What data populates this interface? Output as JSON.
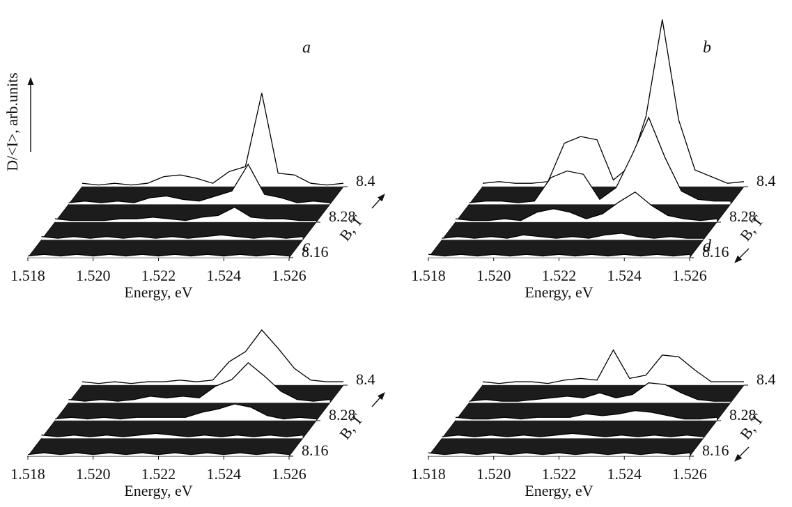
{
  "chart_data": [
    {
      "type": "waterfall",
      "label": "a",
      "ylabel": "D/<I>, arb.units",
      "xlabel": "Energy, eV",
      "blabel": "B, T",
      "b_arrow": "up",
      "x": [
        1.518,
        1.5185,
        1.519,
        1.5195,
        1.52,
        1.5205,
        1.521,
        1.5215,
        1.522,
        1.5225,
        1.523,
        1.5235,
        1.524,
        1.5245,
        1.525,
        1.5255,
        1.526
      ],
      "xlim": [
        1.518,
        1.526
      ],
      "xticks": [
        1.518,
        {
          "value": 1.52,
          "label": "1.520"
        },
        1.522,
        1.524,
        1.526
      ],
      "z": [
        8.16,
        8.22,
        8.28,
        8.34,
        8.4
      ],
      "blim": [
        8.16,
        8.4
      ],
      "bticks": [
        8.16,
        8.28,
        8.4
      ],
      "vlim": [
        0,
        10
      ],
      "values": [
        [
          0.1,
          0.2,
          0.1,
          0.2,
          0.1,
          0.2,
          0.1,
          0.2,
          0.1,
          0.2,
          0.1,
          0.2,
          0.1,
          0.2,
          0.1,
          0.2,
          0.1
        ],
        [
          0.2,
          0.1,
          0.2,
          0.1,
          0.2,
          0.1,
          0.2,
          0.1,
          0.2,
          0.1,
          0.2,
          0.3,
          0.2,
          0.1,
          0.2,
          0.1,
          0.2
        ],
        [
          0.2,
          0.1,
          0.1,
          0.1,
          0.2,
          0.2,
          0.3,
          0.2,
          0.1,
          0.3,
          0.4,
          0.9,
          0.3,
          0.2,
          0.2,
          0.1,
          0.1
        ],
        [
          0.1,
          0.2,
          0.1,
          0.2,
          0.1,
          0.4,
          0.5,
          0.3,
          0.2,
          0.5,
          0.8,
          2.4,
          0.6,
          0.4,
          0.1,
          0.2,
          0.1
        ],
        [
          0.2,
          0.1,
          0.2,
          0.1,
          0.2,
          0.6,
          0.7,
          0.5,
          0.2,
          0.9,
          1.2,
          5.6,
          0.8,
          0.7,
          0.2,
          0.1,
          0.2
        ]
      ]
    },
    {
      "type": "waterfall",
      "label": "b",
      "xlabel": "Energy, eV",
      "blabel": "B, T",
      "b_arrow": "down",
      "x": [
        1.518,
        1.5185,
        1.519,
        1.5195,
        1.52,
        1.5205,
        1.521,
        1.5215,
        1.522,
        1.5225,
        1.523,
        1.5235,
        1.524,
        1.5245,
        1.525,
        1.5255,
        1.526
      ],
      "xlim": [
        1.518,
        1.526
      ],
      "xticks": [
        1.518,
        {
          "value": 1.52,
          "label": "1.520"
        },
        1.522,
        1.524,
        1.526
      ],
      "z": [
        8.16,
        8.22,
        8.28,
        8.34,
        8.4
      ],
      "blim": [
        8.16,
        8.4
      ],
      "bticks": [
        8.16,
        8.28,
        8.4
      ],
      "vlim": [
        0,
        10
      ],
      "values": [
        [
          0.2,
          0.1,
          0.2,
          0.1,
          0.2,
          0.1,
          0.2,
          0.1,
          0.2,
          0.1,
          0.2,
          0.1,
          0.2,
          0.1,
          0.2,
          0.1,
          0.2
        ],
        [
          0.1,
          0.2,
          0.1,
          0.2,
          0.1,
          0.3,
          0.2,
          0.1,
          0.2,
          0.1,
          0.3,
          0.4,
          0.2,
          0.1,
          0.2,
          0.1,
          0.1
        ],
        [
          0.2,
          0.1,
          0.1,
          0.2,
          0.1,
          0.6,
          0.8,
          0.6,
          0.2,
          0.5,
          1.2,
          1.8,
          1.0,
          0.4,
          0.2,
          0.1,
          0.2
        ],
        [
          0.1,
          0.2,
          0.2,
          0.1,
          0.2,
          1.6,
          2.0,
          1.8,
          0.3,
          1.0,
          3.0,
          5.2,
          2.8,
          0.8,
          0.3,
          0.2,
          0.2
        ],
        [
          0.2,
          0.3,
          0.2,
          0.2,
          0.3,
          2.6,
          3.0,
          2.8,
          0.4,
          1.2,
          4.2,
          10,
          4.0,
          1.0,
          0.6,
          0.2,
          0.3
        ]
      ]
    },
    {
      "type": "waterfall",
      "label": "c",
      "xlabel": "Energy, eV",
      "blabel": "B, T",
      "b_arrow": "up",
      "x": [
        1.518,
        1.5185,
        1.519,
        1.5195,
        1.52,
        1.5205,
        1.521,
        1.5215,
        1.522,
        1.5225,
        1.523,
        1.5235,
        1.524,
        1.5245,
        1.525,
        1.5255,
        1.526
      ],
      "xlim": [
        1.518,
        1.526
      ],
      "xticks": [
        1.518,
        {
          "value": 1.52,
          "label": "1.520"
        },
        1.522,
        1.524,
        1.526
      ],
      "z": [
        8.16,
        8.22,
        8.28,
        8.34,
        8.4
      ],
      "blim": [
        8.16,
        8.4
      ],
      "bticks": [
        8.16,
        8.28,
        8.4
      ],
      "vlim": [
        0,
        10
      ],
      "values": [
        [
          0.1,
          0.2,
          0.1,
          0.2,
          0.1,
          0.2,
          0.1,
          0.2,
          0.1,
          0.2,
          0.1,
          0.2,
          0.1,
          0.2,
          0.1,
          0.2,
          0.1
        ],
        [
          0.2,
          0.1,
          0.2,
          0.1,
          0.2,
          0.1,
          0.2,
          0.3,
          0.2,
          0.1,
          0.2,
          0.1,
          0.2,
          0.1,
          0.2,
          0.1,
          0.2
        ],
        [
          0.1,
          0.2,
          0.1,
          0.2,
          0.1,
          0.2,
          0.2,
          0.2,
          0.2,
          0.5,
          0.7,
          1.0,
          0.8,
          0.3,
          0.1,
          0.2,
          0.1
        ],
        [
          0.2,
          0.1,
          0.2,
          0.1,
          0.2,
          0.4,
          0.3,
          0.4,
          0.3,
          1.0,
          1.4,
          2.4,
          1.6,
          0.7,
          0.2,
          0.1,
          0.2
        ],
        [
          0.2,
          0.1,
          0.2,
          0.1,
          0.2,
          0.2,
          0.3,
          0.2,
          0.3,
          1.4,
          2.0,
          3.3,
          2.2,
          1.0,
          0.3,
          0.2,
          0.2
        ]
      ]
    },
    {
      "type": "waterfall",
      "label": "d",
      "xlabel": "Energy, eV",
      "blabel": "B, T",
      "b_arrow": "down",
      "x": [
        1.518,
        1.5185,
        1.519,
        1.5195,
        1.52,
        1.5205,
        1.521,
        1.5215,
        1.522,
        1.5225,
        1.523,
        1.5235,
        1.524,
        1.5245,
        1.525,
        1.5255,
        1.526
      ],
      "xlim": [
        1.518,
        1.526
      ],
      "xticks": [
        1.518,
        {
          "value": 1.52,
          "label": "1.520"
        },
        1.522,
        1.524,
        1.526
      ],
      "z": [
        8.16,
        8.22,
        8.28,
        8.34,
        8.4
      ],
      "blim": [
        8.16,
        8.4
      ],
      "bticks": [
        8.16,
        8.28,
        8.4
      ],
      "vlim": [
        0,
        10
      ],
      "values": [
        [
          0.2,
          0.1,
          0.2,
          0.1,
          0.2,
          0.1,
          0.2,
          0.1,
          0.2,
          0.1,
          0.2,
          0.1,
          0.2,
          0.1,
          0.2,
          0.1,
          0.2
        ],
        [
          0.1,
          0.2,
          0.1,
          0.2,
          0.1,
          0.2,
          0.1,
          0.2,
          0.3,
          0.2,
          0.1,
          0.2,
          0.1,
          0.2,
          0.1,
          0.2,
          0.1
        ],
        [
          0.2,
          0.1,
          0.1,
          0.2,
          0.1,
          0.2,
          0.2,
          0.2,
          0.4,
          0.3,
          0.4,
          0.6,
          0.5,
          0.3,
          0.1,
          0.1,
          0.2
        ],
        [
          0.1,
          0.2,
          0.1,
          0.1,
          0.2,
          0.3,
          0.4,
          0.3,
          0.6,
          0.3,
          0.5,
          1.2,
          1.1,
          0.6,
          0.2,
          0.1,
          0.1
        ],
        [
          0.2,
          0.1,
          0.2,
          0.2,
          0.1,
          0.3,
          0.4,
          0.3,
          2.1,
          0.4,
          0.6,
          1.8,
          1.7,
          0.9,
          0.2,
          0.2,
          0.2
        ]
      ]
    }
  ]
}
